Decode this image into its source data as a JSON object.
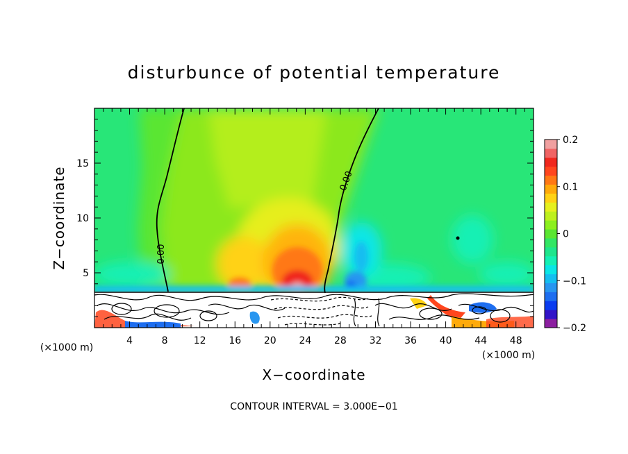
{
  "chart_data": {
    "type": "heatmap",
    "title": "disturbunce of potential temperature",
    "xlabel": "X−coordinate",
    "ylabel": "Z−coordinate",
    "x_unit_left": "(×1000 m)",
    "x_unit_right": "(×1000 m)",
    "xlim": [
      0,
      50
    ],
    "ylim": [
      0,
      20
    ],
    "x_ticks": [
      4,
      8,
      12,
      16,
      20,
      24,
      28,
      32,
      36,
      40,
      44,
      48
    ],
    "x_tick_labels": [
      "4",
      "8",
      "12",
      "16",
      "20",
      "24",
      "28",
      "32",
      "36",
      "40",
      "44",
      "48"
    ],
    "y_ticks": [
      5,
      10,
      15
    ],
    "y_tick_labels": [
      "5",
      "10",
      "15"
    ],
    "colorbar": {
      "min": -0.2,
      "max": 0.2,
      "ticks": [
        0.2,
        0.1,
        0,
        -0.1,
        -0.2
      ],
      "tick_labels": [
        "0.2",
        "0.1",
        "0",
        "−0.1",
        "−0.2"
      ],
      "colors": [
        "#8c1fa0",
        "#3214c8",
        "#0a3cf0",
        "#1e6ef0",
        "#2896f0",
        "#14bef0",
        "#0ae6e6",
        "#14f0b4",
        "#1ee68c",
        "#32e664",
        "#5ae632",
        "#8cf01e",
        "#bef01e",
        "#e6f01e",
        "#ffd214",
        "#ffaa0a",
        "#ff7814",
        "#ff461e",
        "#f0281e",
        "#f06464",
        "#f0a0a0"
      ]
    },
    "contour_labels": [
      "0.00",
      "0.00"
    ],
    "footer": "CONTOUR INTERVAL = 3.000E−01"
  }
}
